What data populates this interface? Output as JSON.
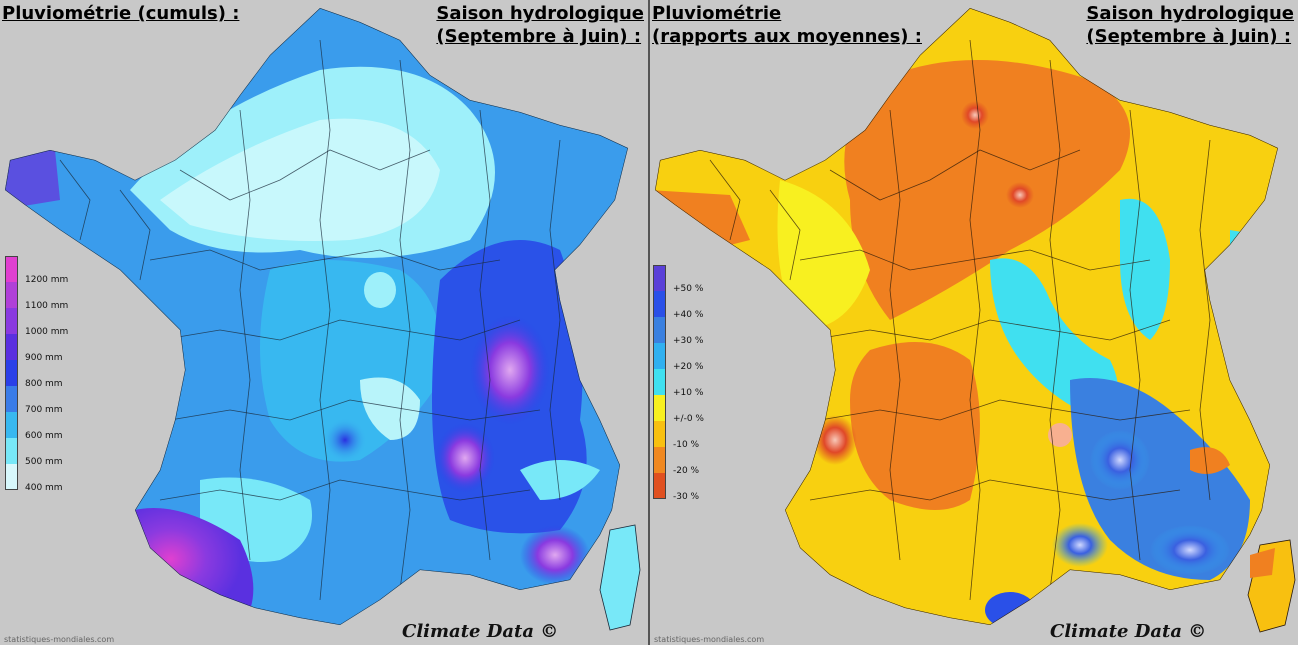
{
  "left_panel": {
    "title_left": "Pluviométrie (cumuls) :",
    "title_right_line1": "Saison hydrologique",
    "title_right_line2": "(Septembre à Juin) :",
    "legend": [
      {
        "label": "1200 mm",
        "color": "#e040d0"
      },
      {
        "label": "1100 mm",
        "color": "#b040d8"
      },
      {
        "label": "1000 mm",
        "color": "#8a3ae0"
      },
      {
        "label": "900 mm",
        "color": "#5a30e0"
      },
      {
        "label": "800 mm",
        "color": "#2a40e8"
      },
      {
        "label": "700 mm",
        "color": "#3a7ce8"
      },
      {
        "label": "600 mm",
        "color": "#38b8f0"
      },
      {
        "label": "500 mm",
        "color": "#78e8f8"
      },
      {
        "label": "400 mm",
        "color": "#d8f8fc"
      }
    ],
    "credit": "Climate Data ©",
    "source": "statistiques-mondiales.com"
  },
  "right_panel": {
    "title_left_line1": "Pluviométrie",
    "title_left_line2": "(rapports aux moyennes) :",
    "title_right_line1": "Saison hydrologique",
    "title_right_line2": "(Septembre à Juin) :",
    "legend": [
      {
        "label": "+50 %",
        "color": "#5a40d8"
      },
      {
        "label": "+40 %",
        "color": "#2a50e8"
      },
      {
        "label": "+30 %",
        "color": "#3a80e0"
      },
      {
        "label": "+20 %",
        "color": "#30b0f0"
      },
      {
        "label": "+10 %",
        "color": "#40e0f0"
      },
      {
        "label": "+/-0 %",
        "color": "#f8f020"
      },
      {
        "label": "-10 %",
        "color": "#f8c010"
      },
      {
        "label": "-20 %",
        "color": "#f08820"
      },
      {
        "label": "-30 %",
        "color": "#e05020"
      }
    ],
    "credit": "Climate Data ©",
    "source": "statistiques-mondiales.com"
  }
}
